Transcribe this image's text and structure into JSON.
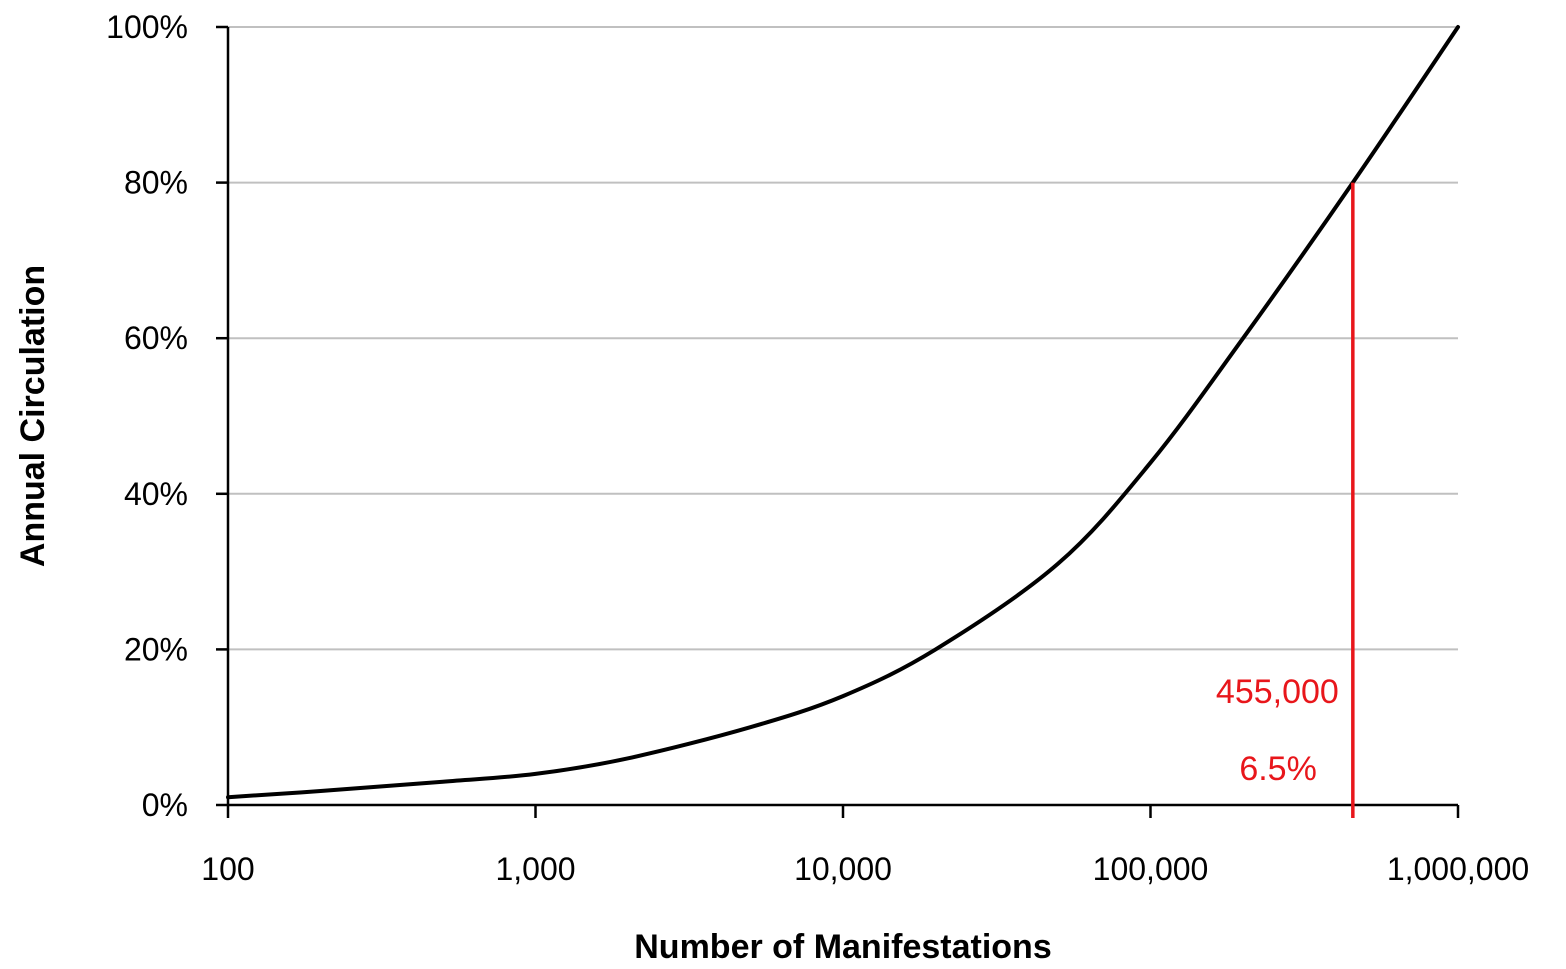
{
  "chart_data": {
    "type": "line",
    "title": "",
    "xlabel": "Number of Manifestations",
    "ylabel": "Annual Circulation",
    "x_scale": "log",
    "xlim": [
      100,
      1000000
    ],
    "ylim": [
      0,
      100
    ],
    "grid": "horizontal",
    "x_ticks": [
      {
        "value": 100,
        "label": "100"
      },
      {
        "value": 1000,
        "label": "1,000"
      },
      {
        "value": 10000,
        "label": "10,000"
      },
      {
        "value": 100000,
        "label": "100,000"
      },
      {
        "value": 1000000,
        "label": "1,000,000"
      }
    ],
    "y_ticks": [
      {
        "value": 0,
        "label": "0%"
      },
      {
        "value": 20,
        "label": "20%"
      },
      {
        "value": 40,
        "label": "40%"
      },
      {
        "value": 60,
        "label": "60%"
      },
      {
        "value": 80,
        "label": "80%"
      },
      {
        "value": 100,
        "label": "100%"
      }
    ],
    "series": [
      {
        "color": "#000000",
        "points": [
          {
            "x": 100,
            "y": 1
          },
          {
            "x": 200,
            "y": 1.8
          },
          {
            "x": 500,
            "y": 3
          },
          {
            "x": 1000,
            "y": 4
          },
          {
            "x": 2000,
            "y": 6
          },
          {
            "x": 5000,
            "y": 10
          },
          {
            "x": 10000,
            "y": 14
          },
          {
            "x": 20000,
            "y": 20
          },
          {
            "x": 50000,
            "y": 31
          },
          {
            "x": 100000,
            "y": 44
          },
          {
            "x": 200000,
            "y": 60
          },
          {
            "x": 455000,
            "y": 80
          },
          {
            "x": 1000000,
            "y": 100
          }
        ]
      }
    ],
    "annotations": {
      "marker_x": 455000,
      "marker_y": 80,
      "color": "#e8161b",
      "label_count": "455,000",
      "label_percent": "6.5%"
    }
  }
}
